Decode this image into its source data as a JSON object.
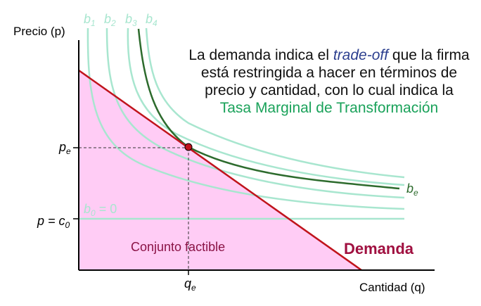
{
  "axes": {
    "y_label": "Precio (p)",
    "x_label": "Cantidad (q)"
  },
  "curves": {
    "b1": "b",
    "b1_sub": "1",
    "b2": "b",
    "b2_sub": "2",
    "b3": "b",
    "b3_sub": "3",
    "b4": "b",
    "b4_sub": "4",
    "be": "b",
    "be_sub": "e",
    "b0": "b",
    "b0_sub": "0",
    "b0_value": " = 0"
  },
  "ticks": {
    "pe": "p",
    "pe_sub": "e",
    "p_c0": "p = c",
    "p_c0_sub": "0",
    "qe": "q",
    "qe_sub": "e"
  },
  "labels": {
    "feasible_set": "Conjunto factible",
    "demand": "Demanda"
  },
  "annotation": {
    "part1": "La demanda indica el ",
    "part2": "trade-off",
    "part3": " que la firma está restringida a hacer en términos de precio y cantidad, con lo cual indica la ",
    "part4": "Tasa Marginal de Transformación"
  },
  "colors": {
    "isoprofit": "#a8e6cf",
    "isoprofit_equilibrium": "#2d6b2d",
    "demand": "#c0141c",
    "feasible_fill": "#ffccf5",
    "feasible_text": "#8a1245",
    "annotation_em": "#2c3f8f",
    "annotation_tmt": "#1aa25a"
  }
}
